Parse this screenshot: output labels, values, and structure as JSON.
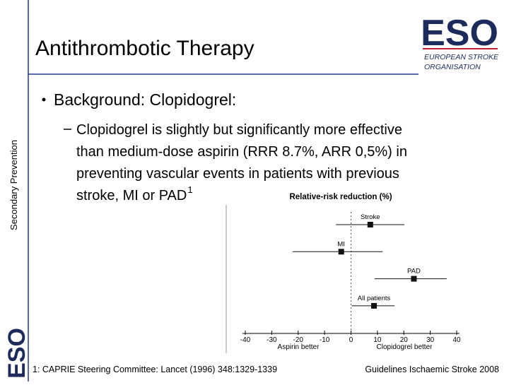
{
  "slide": {
    "title": "Antithrombotic Therapy",
    "side_label": "Secondary Prevention",
    "logo": {
      "mark": "ESO",
      "line1": "EUROPEAN STROKE",
      "line2": "ORGANISATION"
    },
    "bullet": "Background: Clopidogrel:",
    "sub_bullet_lines": [
      "Clopidogrel is slightly but significantly more effective",
      "than medium-dose aspirin (RRR 8.7%, ARR 0,5%) in",
      "preventing vascular events in patients with previous",
      "stroke, MI or PAD"
    ],
    "footnote_ref": "1",
    "footnote": "1: CAPRIE Steering Committee: Lancet (1996) 348:1329-1339",
    "footer_right": "Guidelines Ischaemic Stroke 2008"
  },
  "chart_data": {
    "type": "forest",
    "title": "Relative-risk reduction (%)",
    "categories": [
      "Stroke",
      "MI",
      "PAD",
      "All patients"
    ],
    "values": [
      7.3,
      -3.7,
      23.8,
      8.7
    ],
    "lower": [
      -5.7,
      -22.1,
      8.9,
      0.3
    ],
    "upper": [
      20.2,
      12.0,
      36.2,
      16.5
    ],
    "xlim": [
      -40,
      40
    ],
    "xticks": [
      -40,
      -30,
      -20,
      -10,
      0,
      10,
      20,
      30,
      40
    ],
    "x_left_label": "Aspirin better",
    "x_right_label": "Clopidogrel better",
    "color": "#111111"
  }
}
